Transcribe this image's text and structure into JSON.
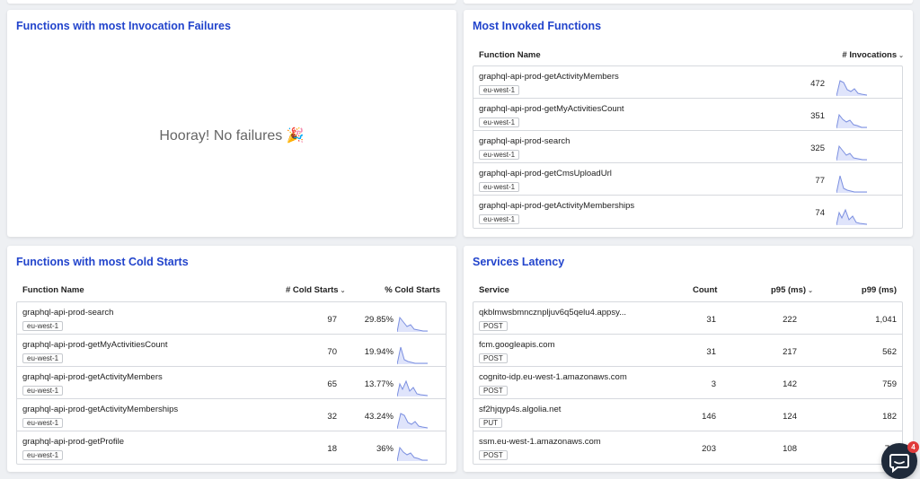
{
  "failures_panel": {
    "title": "Functions with most Invocation Failures",
    "empty_message": "Hooray! No failures 🎉"
  },
  "invoked_panel": {
    "title": "Most Invoked Functions",
    "col_name": "Function Name",
    "col_invocations": "# Invocations",
    "rows": [
      {
        "name": "graphql-api-prod-getActivityMembers",
        "region": "eu-west-1",
        "invocations": "472"
      },
      {
        "name": "graphql-api-prod-getMyActivitiesCount",
        "region": "eu-west-1",
        "invocations": "351"
      },
      {
        "name": "graphql-api-prod-search",
        "region": "eu-west-1",
        "invocations": "325"
      },
      {
        "name": "graphql-api-prod-getCmsUploadUrl",
        "region": "eu-west-1",
        "invocations": "77"
      },
      {
        "name": "graphql-api-prod-getActivityMemberships",
        "region": "eu-west-1",
        "invocations": "74"
      }
    ]
  },
  "cold_panel": {
    "title": "Functions with most Cold Starts",
    "col_name": "Function Name",
    "col_cold": "# Cold Starts",
    "col_pct": "% Cold Starts",
    "rows": [
      {
        "name": "graphql-api-prod-search",
        "region": "eu-west-1",
        "cold": "97",
        "pct": "29.85%"
      },
      {
        "name": "graphql-api-prod-getMyActivitiesCount",
        "region": "eu-west-1",
        "cold": "70",
        "pct": "19.94%"
      },
      {
        "name": "graphql-api-prod-getActivityMembers",
        "region": "eu-west-1",
        "cold": "65",
        "pct": "13.77%"
      },
      {
        "name": "graphql-api-prod-getActivityMemberships",
        "region": "eu-west-1",
        "cold": "32",
        "pct": "43.24%"
      },
      {
        "name": "graphql-api-prod-getProfile",
        "region": "eu-west-1",
        "cold": "18",
        "pct": "36%"
      }
    ]
  },
  "latency_panel": {
    "title": "Services Latency",
    "col_service": "Service",
    "col_count": "Count",
    "col_p95": "p95 (ms)",
    "col_p99": "p99 (ms)",
    "rows": [
      {
        "service": "qkblmwsbmncznpljuv6q5qelu4.appsy...",
        "method": "POST",
        "count": "31",
        "p95": "222",
        "p99": "1,041"
      },
      {
        "service": "fcm.googleapis.com",
        "method": "POST",
        "count": "31",
        "p95": "217",
        "p99": "562"
      },
      {
        "service": "cognito-idp.eu-west-1.amazonaws.com",
        "method": "POST",
        "count": "3",
        "p95": "142",
        "p99": "759"
      },
      {
        "service": "sf2hjqyp4s.algolia.net",
        "method": "PUT",
        "count": "146",
        "p95": "124",
        "p99": "182"
      },
      {
        "service": "ssm.eu-west-1.amazonaws.com",
        "method": "POST",
        "count": "203",
        "p95": "108",
        "p99": "7,5"
      }
    ]
  },
  "chat": {
    "unread": "4"
  },
  "colors": {
    "title": "#2244cc",
    "spark": "#7b8fe0",
    "spark_fill": "#dfe4fb",
    "badge": "#e03b3b"
  },
  "icons": {
    "sort": "chevron-down-icon",
    "chat": "chat-bubble-icon"
  }
}
